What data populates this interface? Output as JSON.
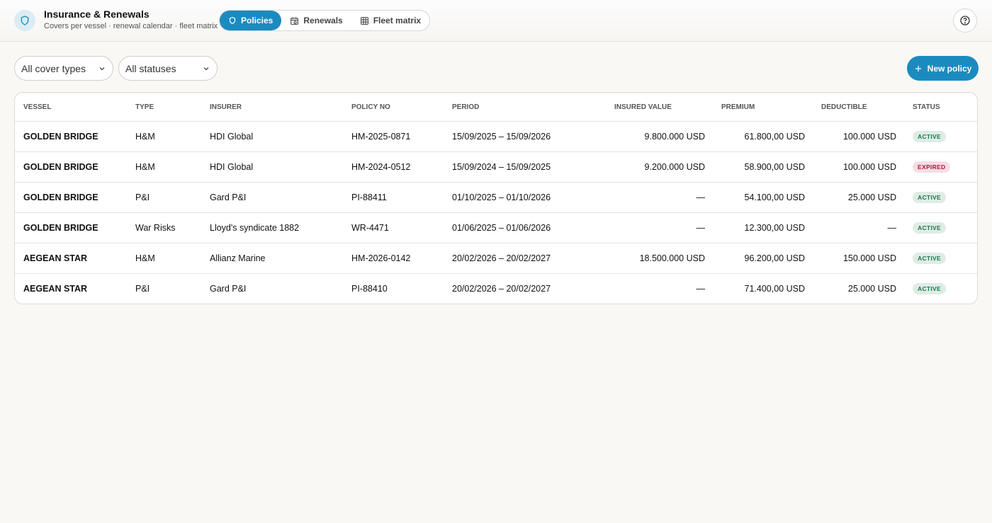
{
  "header": {
    "title": "Insurance & Renewals",
    "subtitle": "Covers per vessel · renewal calendar · fleet matrix",
    "tabs": [
      "Policies",
      "Renewals",
      "Fleet matrix"
    ]
  },
  "filters": [
    "All cover types",
    "All statuses"
  ],
  "new_button": "New policy",
  "table": {
    "columns": [
      "VESSEL",
      "TYPE",
      "INSURER",
      "POLICY NO",
      "PERIOD",
      "INSURED VALUE",
      "PREMIUM",
      "DEDUCTIBLE",
      "STATUS"
    ],
    "rows": [
      [
        "GOLDEN BRIDGE",
        "H&M",
        "HDI Global",
        "HM-2025-0871",
        "15/09/2025 – 15/09/2026",
        "9.800.000 USD",
        "61.800,00 USD",
        "100.000 USD",
        "ACTIVE"
      ],
      [
        "GOLDEN BRIDGE",
        "H&M",
        "HDI Global",
        "HM-2024-0512",
        "15/09/2024 – 15/09/2025",
        "9.200.000 USD",
        "58.900,00 USD",
        "100.000 USD",
        "EXPIRED"
      ],
      [
        "GOLDEN BRIDGE",
        "P&I",
        "Gard P&I",
        "PI-88411",
        "01/10/2025 – 01/10/2026",
        "—",
        "54.100,00 USD",
        "25.000 USD",
        "ACTIVE"
      ],
      [
        "GOLDEN BRIDGE",
        "War Risks",
        "Lloyd's syndicate 1882",
        "WR-4471",
        "01/06/2025 – 01/06/2026",
        "—",
        "12.300,00 USD",
        "—",
        "ACTIVE"
      ],
      [
        "AEGEAN STAR",
        "H&M",
        "Allianz Marine",
        "HM-2026-0142",
        "20/02/2026 – 20/02/2027",
        "18.500.000 USD",
        "96.200,00 USD",
        "150.000 USD",
        "ACTIVE"
      ],
      [
        "AEGEAN STAR",
        "P&I",
        "Gard P&I",
        "PI-88410",
        "20/02/2026 – 20/02/2027",
        "—",
        "71.400,00 USD",
        "25.000 USD",
        "ACTIVE"
      ]
    ],
    "status_colors": [
      "#1a7a4a",
      "#b3143c",
      "#1a7a4a",
      "#1a7a4a",
      "#1a7a4a",
      "#1a7a4a"
    ]
  }
}
